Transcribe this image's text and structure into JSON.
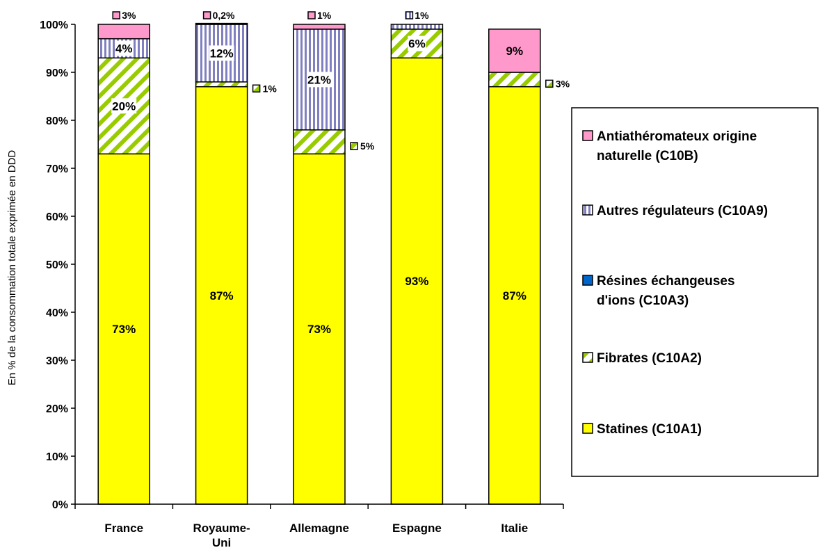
{
  "chart_data": {
    "type": "bar",
    "stacked": true,
    "title": "",
    "xlabel": "",
    "ylabel": "En % de la consommation totale exprimée en DDD",
    "ylim": [
      0,
      100
    ],
    "y_ticks": [
      "0%",
      "10%",
      "20%",
      "30%",
      "40%",
      "50%",
      "60%",
      "70%",
      "80%",
      "90%",
      "100%"
    ],
    "grid": false,
    "legend_position": "right",
    "categories": [
      {
        "label_lines": [
          "France"
        ]
      },
      {
        "label_lines": [
          "Royaume-",
          "Uni"
        ]
      },
      {
        "label_lines": [
          "Allemagne"
        ]
      },
      {
        "label_lines": [
          "Espagne"
        ]
      },
      {
        "label_lines": [
          "Italie"
        ]
      }
    ],
    "series": [
      {
        "name": "Statines (C10A1)",
        "legend_lines": [
          "Statines (C10A1)"
        ],
        "color": "#ffff00",
        "pattern": "solid",
        "values": [
          73,
          87,
          73,
          93,
          87
        ],
        "labels": [
          "73%",
          "87%",
          "73%",
          "93%",
          "87%"
        ],
        "label_pos": [
          "inside",
          "inside",
          "inside",
          "inside",
          "inside"
        ]
      },
      {
        "name": "Fibrates (C10A2)",
        "legend_lines": [
          "Fibrates (C10A2)"
        ],
        "color": "#99cc00",
        "pattern": "diagonal",
        "values": [
          20,
          1,
          5,
          6,
          3
        ],
        "labels": [
          "20%",
          "1%",
          "5%",
          "6%",
          "3%"
        ],
        "label_pos": [
          "inside",
          "outside-right",
          "outside-right",
          "inside",
          "outside-right"
        ]
      },
      {
        "name": "Résines échangeuses d'ions (C10A3)",
        "legend_lines": [
          "Résines échangeuses",
          "d'ions (C10A3)"
        ],
        "color": "#0066cc",
        "pattern": "solid",
        "values": [
          0,
          0,
          0,
          0,
          0
        ],
        "labels": [
          "",
          "",
          "",
          "",
          ""
        ],
        "label_pos": [
          "none",
          "none",
          "none",
          "none",
          "none"
        ]
      },
      {
        "name": "Autres régulateurs (C10A9)",
        "legend_lines": [
          "Autres régulateurs (C10A9)"
        ],
        "color": "#8080c0",
        "pattern": "vertical",
        "values": [
          4,
          12,
          21,
          1,
          0
        ],
        "labels": [
          "4%",
          "12%",
          "21%",
          "1%",
          ""
        ],
        "label_pos": [
          "inside",
          "inside",
          "inside",
          "above",
          "none"
        ]
      },
      {
        "name": "Antiathéromateux origine naturelle (C10B)",
        "legend_lines": [
          "Antiathéromateux origine",
          "naturelle (C10B)"
        ],
        "color": "#ff99cc",
        "pattern": "solid",
        "values": [
          3,
          0.2,
          1,
          0,
          9
        ],
        "labels": [
          "3%",
          "0,2%",
          "1%",
          "",
          "9%"
        ],
        "label_pos": [
          "above",
          "above",
          "above",
          "none",
          "inside"
        ]
      }
    ]
  }
}
